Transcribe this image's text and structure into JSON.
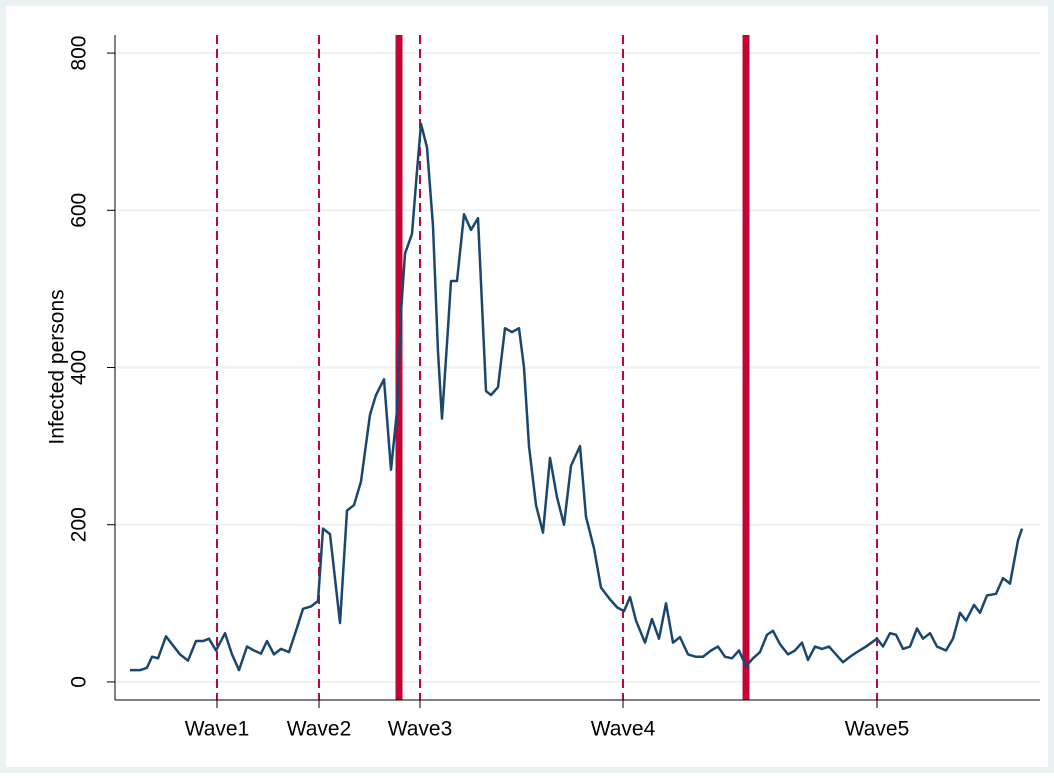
{
  "chart_data": {
    "type": "line",
    "y_label": "Infected persons",
    "x": [
      0,
      2,
      3.4,
      4.4,
      5.6,
      7.2,
      8.4,
      10,
      11.6,
      13.2,
      14.6,
      15.8,
      17.2,
      19,
      20.4,
      21.8,
      23.4,
      24.8,
      26.2,
      27.4,
      28.8,
      30.2,
      31.8,
      33.2,
      34.6,
      36.2,
      37.6,
      38.6,
      40,
      42,
      43.4,
      44.8,
      46.2,
      48,
      49.2,
      50.8,
      52.2,
      53.4,
      54.2,
      55,
      56.4,
      57.4,
      58.2,
      59.4,
      60.6,
      61.6,
      62.4,
      63.6,
      64.2,
      65.4,
      66.8,
      68.2,
      69.6,
      71.2,
      72.2,
      73.6,
      75,
      76.4,
      77.8,
      78.8,
      79.8,
      81.2,
      82.6,
      84,
      85.4,
      86.8,
      88.2,
      90,
      91.2,
      92.8,
      94.2,
      96,
      97.4,
      98.8,
      100,
      101.2,
      103,
      104.4,
      105.8,
      107.2,
      108.6,
      110,
      111.6,
      113.2,
      114.6,
      116.2,
      117.6,
      119,
      120.4,
      121.8,
      123.2,
      124.6,
      126,
      127.4,
      128.6,
      130,
      131.6,
      133,
      134.4,
      135.6,
      137,
      138.4,
      139.8,
      141.2,
      142.6,
      144,
      145.4,
      147.2,
      149.4,
      150.6,
      152,
      153.2,
      154.6,
      156,
      157.4,
      158.6,
      160,
      161.4,
      163.2,
      164.6,
      166,
      167.2,
      168.8,
      170,
      171.4,
      173.2,
      174.6,
      176,
      177.6,
      178.4
    ],
    "series": [
      {
        "name": "Infected persons",
        "color": "#1a476f",
        "values": [
          15,
          15,
          18,
          32,
          30,
          58,
          48,
          35,
          27,
          52,
          52,
          55,
          40,
          62,
          35,
          15,
          45,
          40,
          36,
          52,
          35,
          42,
          38,
          65,
          93,
          96,
          103,
          195,
          188,
          75,
          218,
          225,
          255,
          340,
          365,
          385,
          270,
          345,
          470,
          545,
          570,
          650,
          710,
          680,
          580,
          420,
          335,
          450,
          510,
          510,
          595,
          575,
          590,
          370,
          365,
          375,
          450,
          445,
          450,
          400,
          300,
          225,
          190,
          285,
          235,
          200,
          275,
          300,
          210,
          170,
          120,
          105,
          95,
          90,
          108,
          78,
          50,
          80,
          55,
          100,
          50,
          57,
          35,
          32,
          32,
          40,
          45,
          32,
          30,
          40,
          20,
          30,
          38,
          60,
          65,
          48,
          35,
          40,
          50,
          28,
          45,
          42,
          45,
          35,
          25,
          32,
          38,
          45,
          55,
          45,
          62,
          60,
          42,
          45,
          68,
          55,
          62,
          45,
          40,
          55,
          88,
          78,
          98,
          88,
          110,
          112,
          132,
          125,
          180,
          195
        ]
      }
    ],
    "xlim": [
      -3,
      182
    ],
    "xticks": [
      {
        "value": 17.4,
        "label": "Wave1"
      },
      {
        "value": 37.8,
        "label": "Wave2"
      },
      {
        "value": 58,
        "label": "Wave3"
      },
      {
        "value": 98.6,
        "label": "Wave4"
      },
      {
        "value": 149.4,
        "label": "Wave5"
      }
    ],
    "solid_vlines": [
      53.8,
      123.2
    ],
    "vline_color": "#c10534",
    "ylim": [
      -23,
      823
    ],
    "yticks": [
      0,
      200,
      400,
      600,
      800
    ],
    "grid": true
  }
}
